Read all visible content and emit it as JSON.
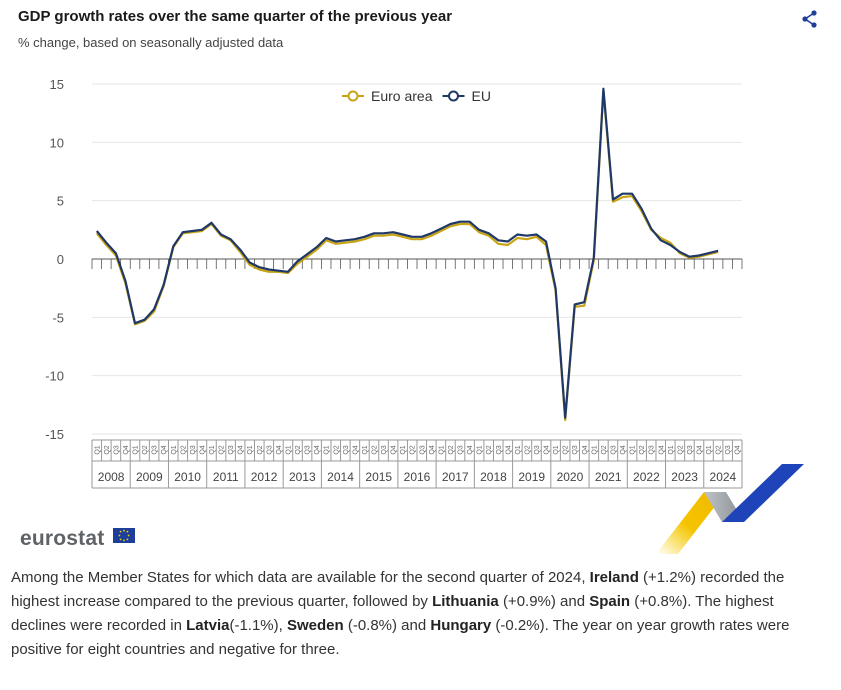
{
  "header": {
    "title": "GDP growth rates over the same quarter of the previous year",
    "subtitle": "% change, based on seasonally adjusted data"
  },
  "share_icon": "share-icon",
  "chart_data": {
    "type": "line",
    "ylim": [
      -15,
      15
    ],
    "yticks": [
      15,
      10,
      5,
      0,
      -5,
      -10,
      -15
    ],
    "grid": true,
    "legend_position": "top-center",
    "quarter_labels": [
      "Q1",
      "Q2",
      "Q3",
      "Q4"
    ],
    "years": [
      "2008",
      "2009",
      "2010",
      "2011",
      "2012",
      "2013",
      "2014",
      "2015",
      "2016",
      "2017",
      "2018",
      "2019",
      "2020",
      "2021",
      "2022",
      "2023",
      "2024"
    ],
    "series": [
      {
        "name": "Euro area",
        "color": "#c8a415",
        "values": [
          2.2,
          1.2,
          0.3,
          -2.1,
          -5.6,
          -5.3,
          -4.5,
          -2.3,
          1.0,
          2.2,
          2.3,
          2.4,
          3.0,
          2.0,
          1.6,
          0.6,
          -0.5,
          -0.9,
          -1.1,
          -1.1,
          -1.2,
          -0.4,
          0.2,
          0.8,
          1.6,
          1.3,
          1.4,
          1.5,
          1.7,
          2.0,
          2.0,
          2.1,
          1.9,
          1.7,
          1.7,
          2.0,
          2.4,
          2.8,
          3.0,
          3.0,
          2.3,
          2.0,
          1.3,
          1.2,
          1.8,
          1.7,
          1.9,
          1.2,
          -2.7,
          -13.8,
          -4.1,
          -4.0,
          -0.1,
          14.4,
          4.9,
          5.3,
          5.4,
          4.1,
          2.5,
          1.8,
          1.4,
          0.5,
          0.1,
          0.2,
          0.4,
          0.6
        ]
      },
      {
        "name": "EU",
        "color": "#1f3868",
        "values": [
          2.4,
          1.4,
          0.5,
          -1.9,
          -5.5,
          -5.2,
          -4.3,
          -2.2,
          1.1,
          2.3,
          2.4,
          2.5,
          3.1,
          2.1,
          1.7,
          0.8,
          -0.3,
          -0.7,
          -0.9,
          -1.0,
          -1.1,
          -0.2,
          0.4,
          1.0,
          1.8,
          1.5,
          1.6,
          1.7,
          1.9,
          2.2,
          2.2,
          2.3,
          2.1,
          1.9,
          1.9,
          2.2,
          2.6,
          3.0,
          3.2,
          3.2,
          2.5,
          2.2,
          1.6,
          1.5,
          2.1,
          2.0,
          2.1,
          1.5,
          -2.5,
          -13.6,
          -3.9,
          -3.7,
          0.1,
          14.6,
          5.1,
          5.6,
          5.6,
          4.3,
          2.6,
          1.6,
          1.2,
          0.6,
          0.2,
          0.3,
          0.5,
          0.7
        ]
      }
    ]
  },
  "logo": {
    "text": "eurostat"
  },
  "paragraph": {
    "p1": "Among the Member States for which data are available for the second quarter of 2024,",
    "c1": "Ireland",
    "p2": "(+1.2%) recorded the highest increase compared to the previous quarter, followed by",
    "c2": "Lithuania",
    "p3": "(+0.9%) and",
    "c3": "Spain",
    "p4": "(+0.8%). The highest declines were recorded in",
    "c4": "Latvia",
    "p5": "(-1.1%),",
    "c5": "Sweden",
    "p6": "(-0.8%) and",
    "c6": "Hungary",
    "p7": "(-0.2%). The year on year growth rates were positive for eight countries and negative for three."
  }
}
